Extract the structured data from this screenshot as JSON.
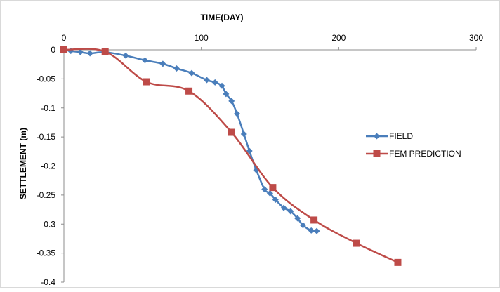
{
  "chart_data": {
    "type": "line",
    "xlabel": "TIME(DAY)",
    "ylabel": "SETTLEMENT  (m)",
    "xlim": [
      0,
      300
    ],
    "ylim": [
      -0.4,
      0
    ],
    "x_ticks": [
      "0",
      "100",
      "200",
      "300"
    ],
    "y_ticks": [
      "0",
      "-0.05",
      "-0.1",
      "-0.15",
      "-0.2",
      "-0.25",
      "-0.3",
      "-0.35",
      "-0.4"
    ],
    "x_axis_position": "top",
    "grid": false,
    "legend_position": "right",
    "series": [
      {
        "name": "FIELD",
        "color": "#4a7ebb",
        "marker": "diamond",
        "x": [
          0,
          5,
          12,
          19,
          30,
          45,
          59,
          72,
          82,
          93,
          104,
          110,
          115,
          118,
          122,
          126,
          131,
          135,
          140,
          146,
          150,
          154,
          160,
          165,
          170,
          174,
          180,
          184
        ],
        "y": [
          0,
          -0.002,
          -0.004,
          -0.006,
          -0.004,
          -0.01,
          -0.018,
          -0.024,
          -0.032,
          -0.04,
          -0.052,
          -0.056,
          -0.062,
          -0.076,
          -0.088,
          -0.11,
          -0.145,
          -0.174,
          -0.207,
          -0.24,
          -0.247,
          -0.258,
          -0.272,
          -0.278,
          -0.29,
          -0.302,
          -0.311,
          -0.312
        ]
      },
      {
        "name": "FEM PREDICTION",
        "color": "#be4b48",
        "marker": "square",
        "x": [
          0,
          30,
          60,
          91,
          122,
          152,
          182,
          213,
          243
        ],
        "y": [
          0,
          -0.003,
          -0.055,
          -0.071,
          -0.142,
          -0.237,
          -0.293,
          -0.333,
          -0.366
        ]
      }
    ]
  }
}
